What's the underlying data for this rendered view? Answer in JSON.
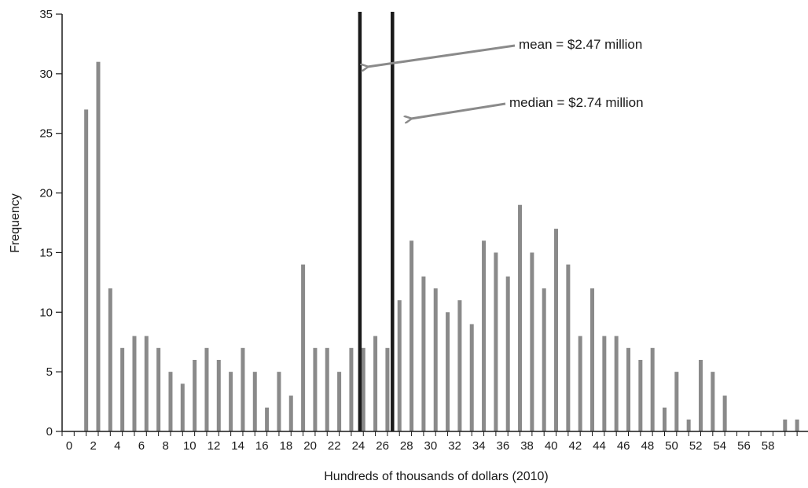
{
  "chart_data": {
    "type": "bar",
    "xlabel": "Hundreds of thousands of dollars (2010)",
    "ylabel": "Frequency",
    "ylim": [
      0,
      35
    ],
    "yticks": [
      0,
      5,
      10,
      15,
      20,
      25,
      30,
      35
    ],
    "xticks": [
      0,
      2,
      4,
      6,
      8,
      10,
      12,
      14,
      16,
      18,
      20,
      22,
      24,
      26,
      28,
      30,
      32,
      34,
      36,
      38,
      40,
      42,
      44,
      46,
      48,
      50,
      52,
      54,
      56,
      58
    ],
    "grid": false,
    "bar_color": "#8a8a8a",
    "x": [
      2,
      3,
      4,
      5,
      6,
      7,
      8,
      9,
      10,
      11,
      12,
      13,
      14,
      15,
      16,
      17,
      18,
      19,
      20,
      21,
      22,
      23,
      24,
      25,
      26,
      27,
      28,
      29,
      30,
      31,
      32,
      33,
      34,
      35,
      36,
      37,
      38,
      39,
      40,
      41,
      42,
      43,
      44,
      45,
      46,
      47,
      48,
      49,
      50,
      51,
      52,
      53,
      54,
      55,
      56,
      57,
      58,
      59,
      60,
      61
    ],
    "values": [
      27,
      31,
      12,
      7,
      8,
      8,
      7,
      5,
      4,
      6,
      7,
      6,
      5,
      7,
      5,
      2,
      5,
      3,
      14,
      7,
      7,
      5,
      7,
      7,
      8,
      7,
      11,
      16,
      13,
      12,
      10,
      11,
      9,
      16,
      15,
      13,
      19,
      15,
      12,
      17,
      14,
      8,
      12,
      8,
      8,
      7,
      6,
      7,
      2,
      5,
      1,
      6,
      5,
      3,
      0,
      0,
      0,
      0,
      1,
      1
    ],
    "reference_lines": [
      {
        "name": "mean",
        "x": 24.7,
        "label": "mean = $2.47 million",
        "color": "#1a1a1a"
      },
      {
        "name": "median",
        "x": 27.4,
        "label": "median = $2.74 million",
        "color": "#1a1a1a"
      }
    ],
    "arrow_color": "#8a8a8a"
  }
}
